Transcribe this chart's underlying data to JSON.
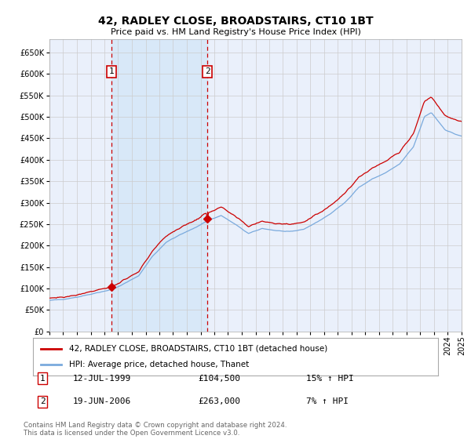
{
  "title": "42, RADLEY CLOSE, BROADSTAIRS, CT10 1BT",
  "subtitle": "Price paid vs. HM Land Registry's House Price Index (HPI)",
  "legend1": "42, RADLEY CLOSE, BROADSTAIRS, CT10 1BT (detached house)",
  "legend2": "HPI: Average price, detached house, Thanet",
  "sale1_date": "12-JUL-1999",
  "sale1_price": 104500,
  "sale1_label": "1",
  "sale1_hpi": "15% ↑ HPI",
  "sale2_date": "19-JUN-2006",
  "sale2_price": 263000,
  "sale2_label": "2",
  "sale2_hpi": "7% ↑ HPI",
  "footer": "Contains HM Land Registry data © Crown copyright and database right 2024.\nThis data is licensed under the Open Government Licence v3.0.",
  "ylim": [
    0,
    680000
  ],
  "yticks": [
    0,
    50000,
    100000,
    150000,
    200000,
    250000,
    300000,
    350000,
    400000,
    450000,
    500000,
    550000,
    600000,
    650000
  ],
  "bg_color": "#ffffff",
  "plot_bg_color": "#eaf0fb",
  "grid_color": "#cccccc",
  "red_line_color": "#cc0000",
  "blue_line_color": "#7aaadd",
  "shade_color": "#d8e8f8",
  "dashed_color": "#cc0000",
  "marker_color": "#cc0000",
  "box_color": "#cc0000",
  "hpi_anchors_x": [
    1995.0,
    1996.0,
    1997.0,
    1998.0,
    1999.0,
    1999.6,
    2000.5,
    2001.5,
    2002.5,
    2003.5,
    2004.5,
    2005.5,
    2006.5,
    2007.5,
    2008.5,
    2009.5,
    2010.5,
    2011.5,
    2012.5,
    2013.5,
    2014.5,
    2015.5,
    2016.5,
    2017.5,
    2018.5,
    2019.5,
    2020.5,
    2021.5,
    2022.3,
    2022.8,
    2023.3,
    2023.8,
    2024.5,
    2025.0
  ],
  "hpi_anchors_y": [
    72000,
    75000,
    80000,
    87000,
    94000,
    98000,
    112000,
    130000,
    175000,
    208000,
    225000,
    240000,
    258000,
    270000,
    250000,
    228000,
    240000,
    235000,
    232000,
    238000,
    255000,
    275000,
    300000,
    335000,
    355000,
    370000,
    390000,
    430000,
    500000,
    510000,
    490000,
    470000,
    460000,
    455000
  ]
}
